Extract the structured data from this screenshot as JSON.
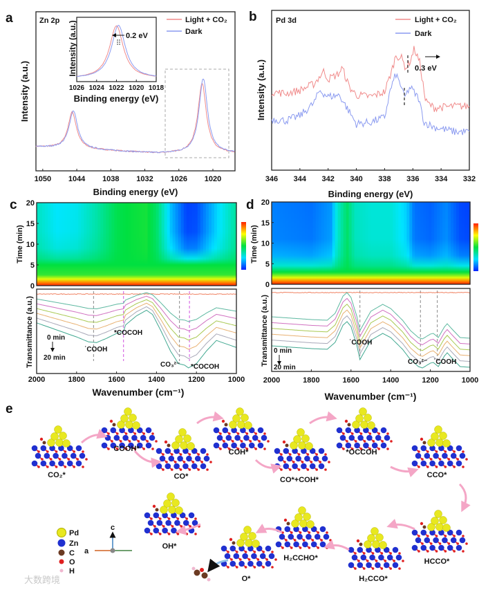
{
  "panels": {
    "a": {
      "letter": "a",
      "element": "Zn 2p"
    },
    "b": {
      "letter": "b",
      "element": "Pd 3d"
    },
    "c": {
      "letter": "c"
    },
    "d": {
      "letter": "d"
    },
    "e": {
      "letter": "e"
    }
  },
  "legend": {
    "light": "Light + CO₂",
    "dark": "Dark"
  },
  "colors": {
    "light": "#f08a8a",
    "dark": "#8a9af0",
    "arrow": "#f4a6c6",
    "pd": "#e8e820",
    "zn": "#2030d0",
    "c": "#6b3a22",
    "o": "#e02020",
    "h": "#f0b8d0"
  },
  "chart_data": [
    {
      "id": "a",
      "type": "line",
      "title": "Zn 2p",
      "xlabel": "Binding energy (eV)",
      "ylabel": "Intensity (a.u.)",
      "xlim": [
        1051.2,
        1016.1
      ],
      "ylim": [
        0,
        1
      ],
      "xticks": [
        1050,
        1044,
        1038,
        1032,
        1026,
        1020
      ],
      "baseline": [
        [
          1051.2,
          0.15
        ],
        [
          1040,
          0.13
        ],
        [
          1030,
          0.11
        ],
        [
          1016.1,
          0.11
        ]
      ],
      "series": [
        {
          "name": "Light + CO₂",
          "peaks": [
            {
              "center": 1044.8,
              "height": 0.23,
              "hwhm": 0.9
            },
            {
              "center": 1021.9,
              "height": 0.44,
              "hwhm": 0.9
            }
          ]
        },
        {
          "name": "Dark",
          "peaks": [
            {
              "center": 1044.6,
              "height": 0.24,
              "hwhm": 0.9
            },
            {
              "center": 1021.7,
              "height": 0.47,
              "hwhm": 0.9
            }
          ]
        }
      ],
      "inset": {
        "xlabel": "Binding energy (eV)",
        "ylabel": "Intensity (a.u.)",
        "xlim": [
          1026,
          1018
        ],
        "xticks": [
          1026,
          1024,
          1022,
          1020,
          1018
        ],
        "annotation": "0.2 eV",
        "series": [
          {
            "name": "Light + CO₂",
            "center": 1022.0,
            "height": 0.86,
            "hwhm": 0.85
          },
          {
            "name": "Dark",
            "center": 1021.8,
            "height": 0.87,
            "hwhm": 0.85
          }
        ]
      }
    },
    {
      "id": "b",
      "type": "line",
      "title": "Pd 3d",
      "xlabel": "Binding energy (eV)",
      "ylabel": "Intensity (a.u.)",
      "xlim": [
        346,
        332
      ],
      "ylim": [
        0,
        1
      ],
      "xticks": [
        346,
        344,
        342,
        340,
        338,
        336,
        334,
        332
      ],
      "annotation": "0.3 eV",
      "series": [
        {
          "name": "Light + CO₂",
          "points": [
            [
              346,
              0.49
            ],
            [
              345,
              0.48
            ],
            [
              344,
              0.5
            ],
            [
              343,
              0.54
            ],
            [
              342.3,
              0.62
            ],
            [
              342,
              0.57
            ],
            [
              341.3,
              0.6
            ],
            [
              341,
              0.64
            ],
            [
              340.5,
              0.52
            ],
            [
              340,
              0.47
            ],
            [
              339,
              0.46
            ],
            [
              338,
              0.49
            ],
            [
              337.5,
              0.62
            ],
            [
              337.2,
              0.72
            ],
            [
              336.8,
              0.7
            ],
            [
              336.5,
              0.64
            ],
            [
              336.2,
              0.68
            ],
            [
              335.9,
              0.76
            ],
            [
              335.5,
              0.67
            ],
            [
              335.1,
              0.43
            ],
            [
              334.5,
              0.39
            ],
            [
              333,
              0.4
            ],
            [
              332,
              0.4
            ]
          ]
        },
        {
          "name": "Dark",
          "points": [
            [
              346,
              0.32
            ],
            [
              345,
              0.31
            ],
            [
              344,
              0.34
            ],
            [
              343,
              0.42
            ],
            [
              342.6,
              0.5
            ],
            [
              342,
              0.46
            ],
            [
              341.2,
              0.47
            ],
            [
              340.6,
              0.38
            ],
            [
              340,
              0.29
            ],
            [
              339,
              0.3
            ],
            [
              338,
              0.33
            ],
            [
              337.6,
              0.5
            ],
            [
              337.2,
              0.6
            ],
            [
              336.8,
              0.52
            ],
            [
              336.6,
              0.45
            ],
            [
              336.2,
              0.52
            ],
            [
              335.6,
              0.45
            ],
            [
              335.2,
              0.3
            ],
            [
              334.5,
              0.27
            ],
            [
              333,
              0.24
            ],
            [
              332,
              0.24
            ]
          ]
        }
      ]
    },
    {
      "id": "c",
      "type": "heatmap+line",
      "xlabel": "Wavenumber (cm⁻¹)",
      "heatmap_ylabel": "Time (min)",
      "ylabel": "Transmittance (a.u.)",
      "xlim": [
        2000,
        1000
      ],
      "xticks": [
        2000,
        1800,
        1600,
        1400,
        1200,
        1000
      ],
      "time_ticks": [
        0,
        5,
        10,
        15,
        20
      ],
      "time_range": [
        0,
        20
      ],
      "heatmap_onset_min": 5,
      "heatmap_top_intensity": [
        [
          2000,
          0.33
        ],
        [
          1900,
          0.25
        ],
        [
          1800,
          0.27
        ],
        [
          1700,
          0.36
        ],
        [
          1600,
          0.48
        ],
        [
          1550,
          0.5
        ],
        [
          1450,
          0.52
        ],
        [
          1400,
          0.45
        ],
        [
          1330,
          0.2
        ],
        [
          1250,
          0.04
        ],
        [
          1200,
          0.05
        ],
        [
          1100,
          0.22
        ],
        [
          1000,
          0.38
        ]
      ],
      "ylim": [
        -1.0,
        0.2
      ],
      "reference_line": 0.13,
      "series_offsets": [
        0.06,
        -0.008,
        -0.076,
        -0.144,
        -0.212,
        -0.28
      ],
      "series_scales": [
        0.5,
        0.6,
        0.7,
        0.8,
        0.9,
        1.0
      ],
      "shape": [
        [
          2000,
          0
        ],
        [
          1900,
          -0.1
        ],
        [
          1800,
          -0.2
        ],
        [
          1740,
          -0.27
        ],
        [
          1700,
          -0.28
        ],
        [
          1650,
          -0.22
        ],
        [
          1600,
          -0.15
        ],
        [
          1565,
          -0.12
        ],
        [
          1555,
          -0.03
        ],
        [
          1500,
          0.1
        ],
        [
          1450,
          0.18
        ],
        [
          1420,
          0.12
        ],
        [
          1380,
          -0.1
        ],
        [
          1330,
          -0.4
        ],
        [
          1290,
          -0.58
        ],
        [
          1260,
          -0.6
        ],
        [
          1240,
          -0.64
        ],
        [
          1200,
          -0.58
        ],
        [
          1150,
          -0.4
        ],
        [
          1100,
          -0.25
        ],
        [
          1050,
          -0.3
        ],
        [
          1000,
          -0.35
        ]
      ],
      "markers": [
        {
          "x": 1715,
          "label": "˙COOH",
          "color": "#888888"
        },
        {
          "x": 1565,
          "label": "*COCOH",
          "color": "#d050e0"
        },
        {
          "x": 1285,
          "label": "CO₃²⁻",
          "color": "#888888"
        },
        {
          "x": 1235,
          "label": "*COCOH",
          "color": "#d050e0"
        }
      ],
      "time_start": "0 min",
      "time_end": "20 min"
    },
    {
      "id": "d",
      "type": "heatmap+line",
      "xlabel": "Wavenumber (cm⁻¹)",
      "heatmap_ylabel": "Time (min)",
      "ylabel": "Transmittance (a.u.)",
      "xlim": [
        2000,
        1000
      ],
      "xticks": [
        2000,
        1800,
        1600,
        1400,
        1200,
        1000
      ],
      "time_ticks": [
        0,
        5,
        10,
        15,
        20
      ],
      "time_range": [
        0,
        20
      ],
      "heatmap_onset_min": 3,
      "heatmap_top_intensity": [
        [
          2000,
          0.12
        ],
        [
          1800,
          0.1
        ],
        [
          1700,
          0.15
        ],
        [
          1670,
          0.3
        ],
        [
          1620,
          0.45
        ],
        [
          1580,
          0.33
        ],
        [
          1500,
          0.3
        ],
        [
          1400,
          0.3
        ],
        [
          1320,
          0.22
        ],
        [
          1280,
          0.1
        ],
        [
          1200,
          0.08
        ],
        [
          1120,
          0.13
        ],
        [
          1050,
          0.05
        ],
        [
          1000,
          0.04
        ]
      ],
      "ylim": [
        -1.0,
        0.2
      ],
      "reference_line": 0.14,
      "series_offsets": [
        -0.21,
        -0.294,
        -0.378,
        -0.462,
        -0.546,
        -0.63
      ],
      "series_scales": [
        1,
        1,
        1,
        1,
        1,
        1
      ],
      "shape": [
        [
          2000,
          0
        ],
        [
          1800,
          -0.04
        ],
        [
          1720,
          -0.05
        ],
        [
          1680,
          0.05
        ],
        [
          1640,
          0.3
        ],
        [
          1620,
          0.35
        ],
        [
          1600,
          0.28
        ],
        [
          1570,
          0.0
        ],
        [
          1555,
          -0.2
        ],
        [
          1500,
          0.08
        ],
        [
          1440,
          0.18
        ],
        [
          1400,
          0.12
        ],
        [
          1340,
          -0.05
        ],
        [
          1300,
          -0.2
        ],
        [
          1260,
          -0.3
        ],
        [
          1240,
          -0.32
        ],
        [
          1200,
          -0.25
        ],
        [
          1185,
          -0.24
        ],
        [
          1160,
          -0.3
        ],
        [
          1130,
          -0.15
        ],
        [
          1115,
          -0.1
        ],
        [
          1090,
          -0.18
        ],
        [
          1050,
          -0.3
        ],
        [
          1000,
          -0.31
        ]
      ],
      "markers": [
        {
          "x": 1555,
          "label": "˙COOH",
          "color": "#888888"
        },
        {
          "x": 1250,
          "label": "CO₃²⁻",
          "color": "#888888"
        },
        {
          "x": 1165,
          "label": "˙COOH",
          "color": "#888888"
        }
      ],
      "time_start": "0 min",
      "time_end": "20 min"
    }
  ],
  "series_colors": [
    "#5cb8a0",
    "#d070c0",
    "#a8c850",
    "#e8b070",
    "#a8a8b8",
    "#40a890"
  ],
  "reference_color": "#f08060",
  "pathway": {
    "states": [
      "CO₂*",
      "COOH*",
      "CO*",
      "COH*",
      "CO*+COH*",
      "*OCCOH",
      "CCO*",
      "HCCO*",
      "H₂CCO*",
      "H₂CCHO*",
      "O*",
      "OH*"
    ]
  },
  "atom_legend": [
    "Pd",
    "Zn",
    "C",
    "O",
    "H"
  ],
  "axes_labels": {
    "c": "c",
    "a": "a"
  },
  "watermark": "大数跨境"
}
